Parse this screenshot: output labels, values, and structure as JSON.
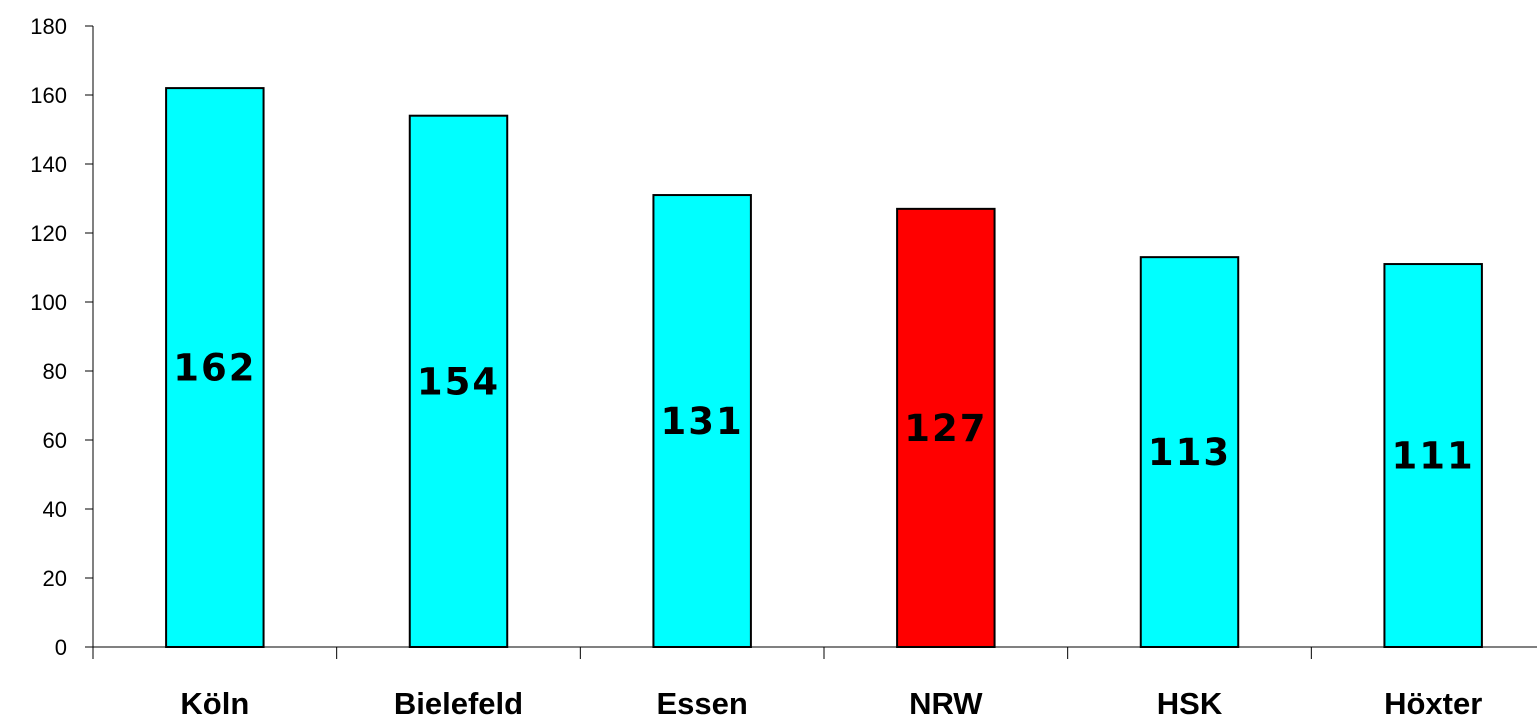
{
  "chart_data": {
    "type": "bar",
    "categories": [
      "Köln",
      "Bielefeld",
      "Essen",
      "NRW",
      "HSK",
      "Höxter"
    ],
    "values": [
      162,
      154,
      131,
      127,
      113,
      111
    ],
    "data_labels": [
      "162",
      "154",
      "131",
      "127",
      "113",
      "111"
    ],
    "title": "",
    "xlabel": "",
    "ylabel": "",
    "ylim": [
      0,
      180
    ],
    "yticks": [
      0,
      20,
      40,
      60,
      80,
      100,
      120,
      140,
      160,
      180
    ],
    "ytick_labels": [
      "0",
      "20",
      "40",
      "60",
      "80",
      "100",
      "120",
      "140",
      "160",
      "180"
    ],
    "grid": false,
    "legend": "none",
    "colors": {
      "default_bar": "#00FFFF",
      "highlight_bar": "#FF0000",
      "highlight_category": "NRW",
      "outline": "#000000"
    }
  }
}
